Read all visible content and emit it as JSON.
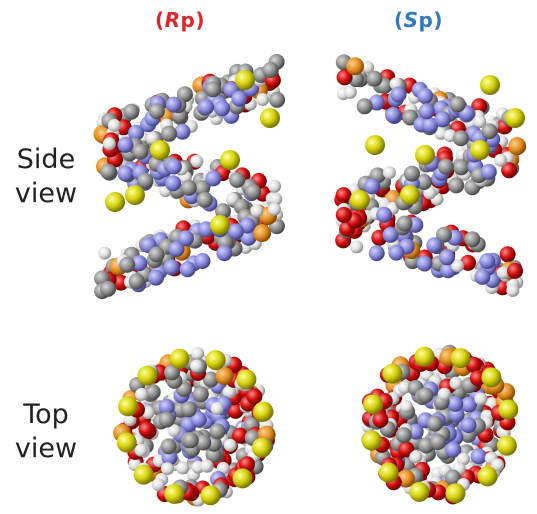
{
  "columns": [
    {
      "id": "rp",
      "prefix": "(",
      "italic": "R",
      "suffix": "p)",
      "color": "#e0262b"
    },
    {
      "id": "sp",
      "prefix": "(",
      "italic": "S",
      "suffix": "p)",
      "color": "#2f7bbf"
    }
  ],
  "rows": [
    {
      "id": "side",
      "line1": "Side",
      "line2": "view"
    },
    {
      "id": "top",
      "line1": "Top",
      "line2": "view"
    }
  ],
  "atom_colors": {
    "carbon": "#8c8c8c",
    "hydrogen": "#e3e3e3",
    "oxygen": "#d10f0f",
    "nitrogen": "#8585d6",
    "phosphorus": "#e08a1e",
    "sulfur": "#d6d20f"
  }
}
